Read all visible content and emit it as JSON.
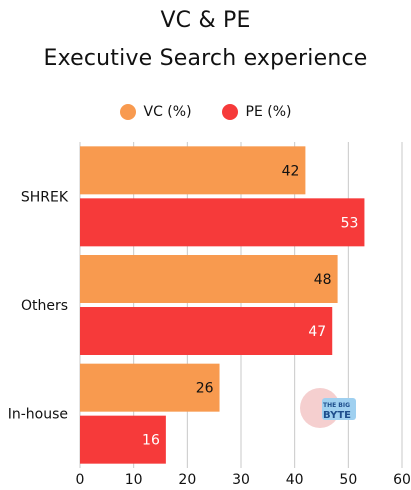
{
  "title_line1": "VC & PE",
  "title_line2": "Executive Search experience",
  "logo": {
    "line1": "THE BIG",
    "line2": "BYTE"
  },
  "colors": {
    "vc": "#F89A4F",
    "pe": "#F63A3A",
    "grid": "#C8C8C8"
  },
  "chart_data": {
    "type": "bar",
    "orientation": "horizontal",
    "title": "VC & PE Executive Search experience",
    "categories": [
      "SHREK",
      "Others",
      "In-house"
    ],
    "series": [
      {
        "name": "VC (%)",
        "values": [
          42,
          48,
          26
        ]
      },
      {
        "name": "PE (%)",
        "values": [
          53,
          47,
          16
        ]
      }
    ],
    "xlim": [
      0,
      60
    ],
    "xticks": [
      0,
      10,
      20,
      30,
      40,
      50,
      60
    ],
    "grid": true,
    "legend": "top-center"
  }
}
